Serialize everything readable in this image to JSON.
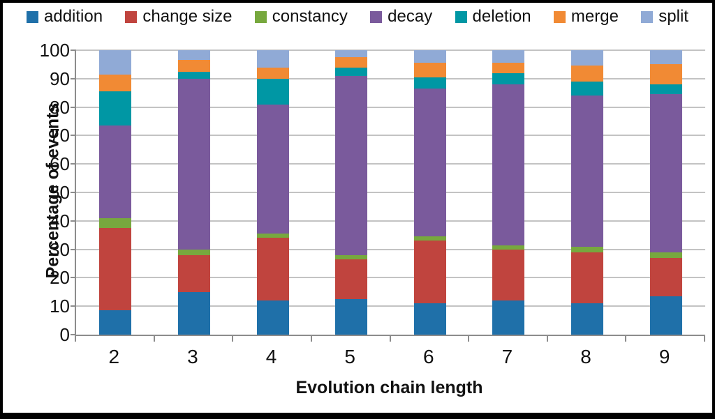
{
  "chart_data": {
    "type": "bar",
    "stacked": true,
    "categories": [
      "2",
      "3",
      "4",
      "5",
      "6",
      "7",
      "8",
      "9"
    ],
    "series": [
      {
        "name": "addition",
        "color": "#1f70a9",
        "values": [
          8.5,
          15,
          12,
          12.5,
          11,
          12,
          11,
          13.5
        ]
      },
      {
        "name": "change size",
        "color": "#c0443e",
        "values": [
          29,
          13,
          22,
          14,
          22,
          18,
          18,
          13.5
        ]
      },
      {
        "name": "constancy",
        "color": "#77a83e",
        "values": [
          3.5,
          2,
          1.5,
          1.5,
          1.5,
          1.5,
          2,
          2
        ]
      },
      {
        "name": "decay",
        "color": "#7a5a9c",
        "values": [
          32.5,
          60,
          45.5,
          63,
          52,
          56.5,
          53,
          55.5
        ]
      },
      {
        "name": "deletion",
        "color": "#0097a4",
        "values": [
          12,
          2.5,
          9,
          3,
          4,
          4,
          5,
          3.5
        ]
      },
      {
        "name": "merge",
        "color": "#f18a34",
        "values": [
          6,
          4,
          4,
          3.5,
          5,
          3.5,
          5.5,
          7
        ]
      },
      {
        "name": "split",
        "color": "#90aad6",
        "values": [
          8.5,
          3.5,
          6,
          2.5,
          4.5,
          4.5,
          5.5,
          5
        ]
      }
    ],
    "title": "",
    "xlabel": "Evolution chain length",
    "ylabel": "Percentage of events",
    "ylim": [
      0,
      100
    ],
    "yticks": [
      0,
      10,
      20,
      30,
      40,
      50,
      60,
      70,
      80,
      90,
      100
    ],
    "grid": true,
    "legend_position": "top",
    "gridline_color": "#c3c3c3",
    "axis_color": "#8c8c8c"
  }
}
